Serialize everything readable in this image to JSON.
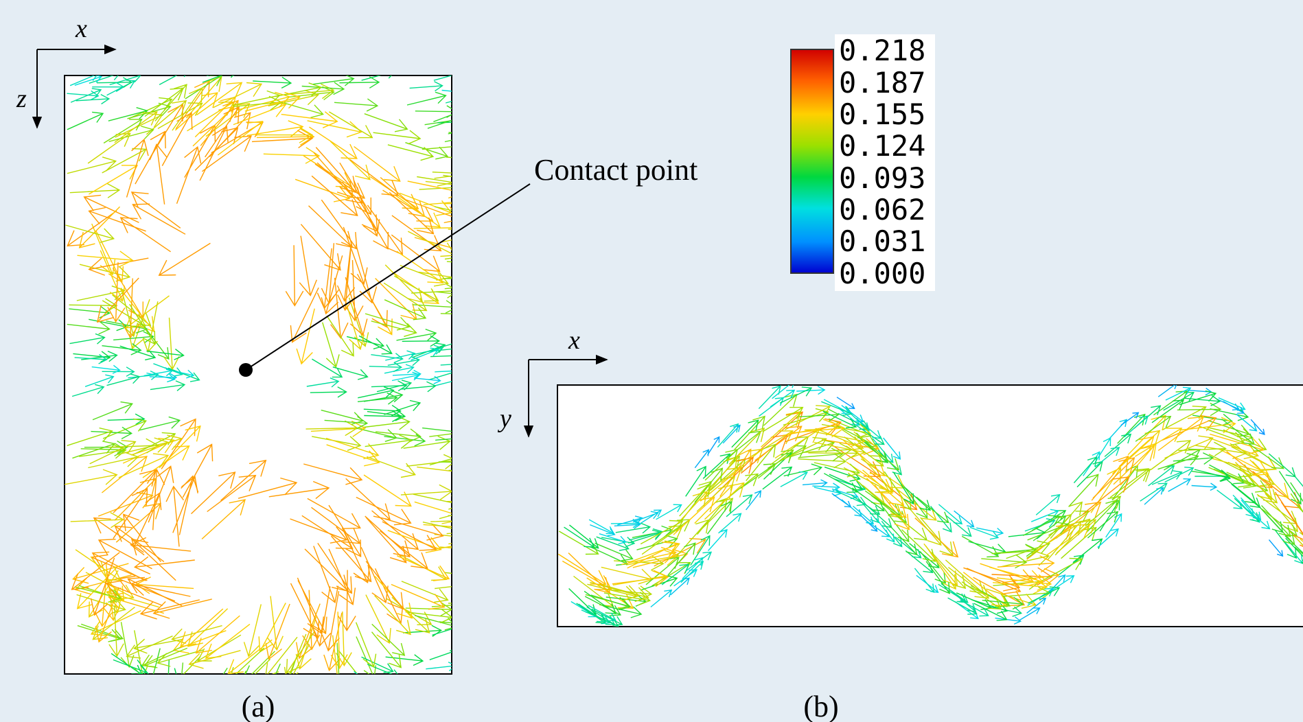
{
  "panel_a": {
    "axis_horizontal": "x",
    "axis_vertical": "z",
    "caption": "(a)",
    "annotation": "Contact point"
  },
  "panel_b": {
    "axis_horizontal": "x",
    "axis_vertical": "y",
    "caption": "(b)"
  },
  "colorbar": {
    "ticks": [
      "0.218",
      "0.187",
      "0.155",
      "0.124",
      "0.093",
      "0.062",
      "0.031",
      "0.000"
    ],
    "colors": [
      "#d00000",
      "#ff6000",
      "#ffd000",
      "#9be000",
      "#00d840",
      "#00e0e0",
      "#0090ff",
      "#0000d0"
    ]
  }
}
